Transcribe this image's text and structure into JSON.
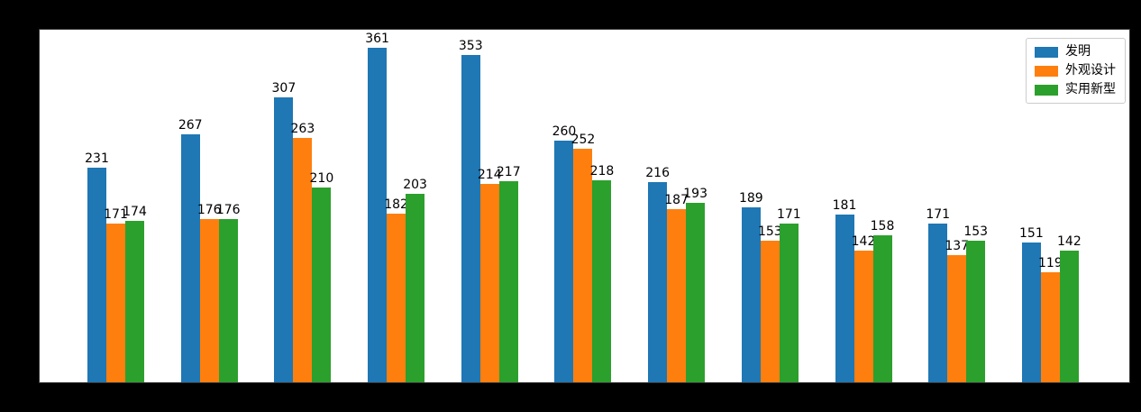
{
  "chart_data": {
    "type": "bar",
    "title": "",
    "n_groups": 11,
    "series": [
      {
        "name": "发明",
        "color": "#1f77b4",
        "values": [
          231,
          267,
          307,
          361,
          353,
          260,
          216,
          189,
          181,
          171,
          151
        ]
      },
      {
        "name": "外观设计",
        "color": "#ff7f0e",
        "values": [
          171,
          176,
          263,
          182,
          214,
          252,
          187,
          153,
          142,
          137,
          119
        ]
      },
      {
        "name": "实用新型",
        "color": "#2ca02c",
        "values": [
          174,
          176,
          210,
          203,
          217,
          218,
          193,
          171,
          158,
          153,
          142
        ]
      }
    ],
    "bar_value_labels_shown": true,
    "xlabel": "",
    "ylabel": "",
    "ylim": [
      0,
      380
    ],
    "grid": false,
    "legend_position": "upper right",
    "plot_background": "#ffffff",
    "figure_background": "#000000"
  }
}
